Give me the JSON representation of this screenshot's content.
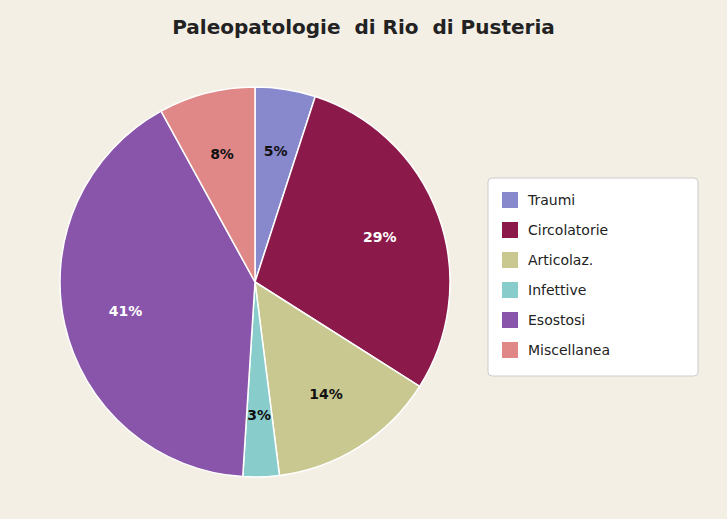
{
  "chart_data": {
    "type": "pie",
    "title": "Paleopatologie  di Rio  di Pusteria",
    "categories": [
      "Traumi",
      "Circolatorie",
      "Articolaz.",
      "Infettive",
      "Esostosi",
      "Miscellanea"
    ],
    "values": [
      5,
      29,
      14,
      3,
      41,
      8
    ],
    "value_labels": [
      "5%",
      "29%",
      "14%",
      "3%",
      "41%",
      "8%"
    ],
    "colors": [
      "#8888cc",
      "#8b1a4a",
      "#c8c890",
      "#88cccc",
      "#8855aa",
      "#e08888"
    ],
    "data_labels": true,
    "legend": "right"
  }
}
